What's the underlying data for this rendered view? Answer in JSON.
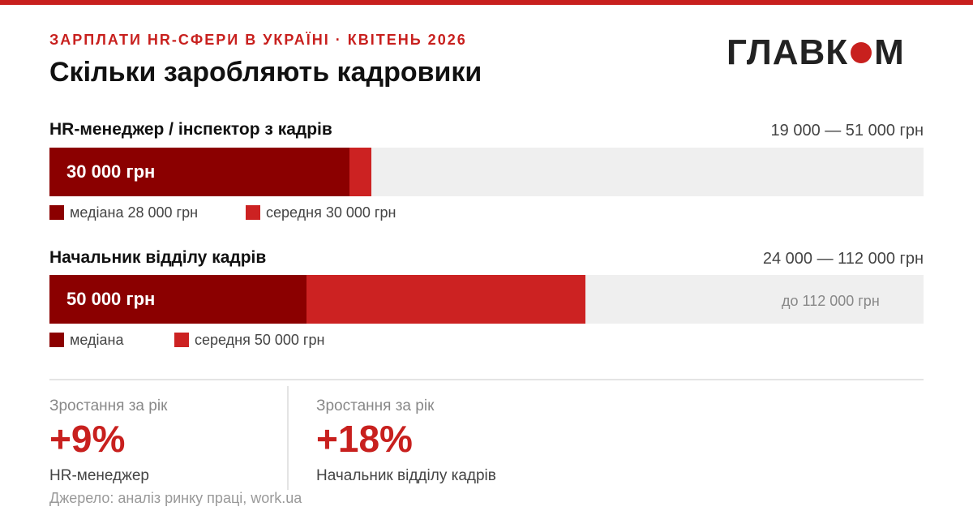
{
  "header": {
    "kicker": "ЗАРПЛАТИ HR-СФЕРИ В УКРАЇНІ · КВІТЕНЬ 2026",
    "title": "Скільки заробляють кадровики",
    "logo_left": "ГЛАВК",
    "logo_right": "М"
  },
  "colors": {
    "accent": "#c8201e",
    "median": "#8b0000",
    "average": "#cc2222",
    "track": "#efefef"
  },
  "chart_data": {
    "type": "bar",
    "orientation": "horizontal",
    "stacked_overlay": true,
    "axis_max": 112000,
    "grid": false,
    "rows": [
      {
        "label": "HR-менеджер / інспектор з кадрів",
        "range_text": "19 000 — 51 000 грн",
        "range": [
          19000,
          51000
        ],
        "median": 28000,
        "average": 30000,
        "bar_value_text": "30 000 грн",
        "max_text": "",
        "legend": [
          {
            "name": "медіана 28 000 грн",
            "color": "#8b0000"
          },
          {
            "name": "середня 30 000 грн",
            "color": "#cc2222"
          }
        ]
      },
      {
        "label": "Начальник відділу кадрів",
        "range_text": "24 000 — 112 000 грн",
        "range": [
          24000,
          112000
        ],
        "median": 24000,
        "average": 50000,
        "bar_value_text": "50 000 грн",
        "max_text": "до 112 000 грн",
        "legend": [
          {
            "name": "медіана",
            "color": "#8b0000"
          },
          {
            "name": "середня 50 000 грн",
            "color": "#cc2222"
          }
        ]
      }
    ]
  },
  "stats": [
    {
      "label": "Зростання за рік",
      "value": "+9%",
      "sub": "HR-менеджер"
    },
    {
      "label": "Зростання за рік",
      "value": "+18%",
      "sub": "Начальник відділу кадрів"
    }
  ],
  "source": "Джерело: аналіз ринку праці, work.ua"
}
